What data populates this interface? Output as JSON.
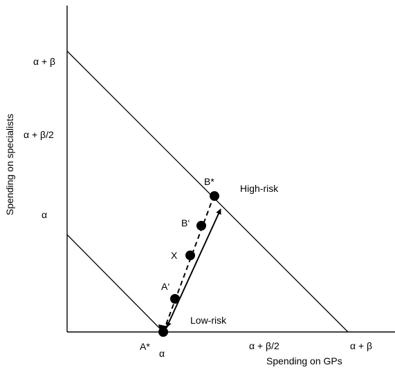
{
  "axes": {
    "x_label": "Spending on GPs",
    "y_label": "Spending on specialists",
    "x_ticks": [
      "α",
      "α + β/2",
      "α + β"
    ],
    "y_ticks": [
      "α + β",
      "α + β/2",
      "α"
    ]
  },
  "lines": {
    "high_risk_label": "High-risk",
    "low_risk_label": "Low-risk"
  },
  "points": {
    "a_star": "A*",
    "a_prime": "A‘",
    "x": "X",
    "b_prime": "B‘",
    "b_star": "B*"
  }
}
